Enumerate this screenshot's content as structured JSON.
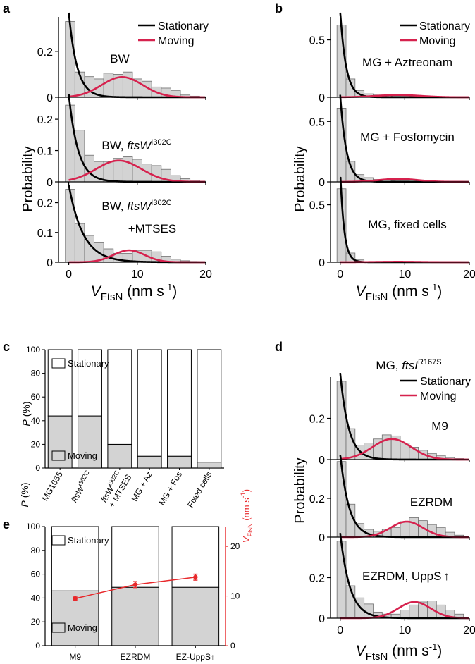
{
  "colors": {
    "stationary": "#000000",
    "moving": "#d6224e",
    "bar": "#d3d3d3",
    "axis_right": "#e8282b"
  },
  "panels": {
    "a": {
      "letter": "a",
      "ylabel": "Probability",
      "xlabel_main": "V",
      "xlabel_sub": "FtsN",
      "xlabel_units": " (nm s",
      "xlabel_exp": "-1",
      "xlabel_close": ")"
    },
    "b": {
      "letter": "b",
      "ylabel": "Probability",
      "xlabel_main": "V",
      "xlabel_sub": "FtsN",
      "xlabel_units": " (nm s",
      "xlabel_exp": "-1",
      "xlabel_close": ")"
    },
    "c": {
      "letter": "c",
      "ylabel": "P",
      "ylabel_units": " (%)"
    },
    "d": {
      "letter": "d",
      "title_prefix": "MG, ",
      "title_gene": "ftsI",
      "title_sup": "R167S",
      "ylabel": "Probability",
      "xlabel_main": "V",
      "xlabel_sub": "FtsN",
      "xlabel_units": " (nm s",
      "xlabel_exp": "-1",
      "xlabel_close": ")"
    },
    "e": {
      "letter": "e",
      "ylabel": "P",
      "ylabel_units": " (%)",
      "ylabel_right_main": "V",
      "ylabel_right_sub": "FtsN",
      "ylabel_right_units": " (nm s",
      "ylabel_right_exp": "-1",
      "ylabel_right_close": ")"
    }
  },
  "labels": {
    "a1": "BW",
    "a2_prefix": "BW, ",
    "a2_gene": "ftsW",
    "a2_sup": "I302C",
    "a3_prefix": "BW, ",
    "a3_gene": "ftsW",
    "a3_sup": "I302C",
    "a3_line2": "+MTSES",
    "b1": "MG + Aztreonam",
    "b2": "MG + Fosfomycin",
    "b3": "MG, fixed cells",
    "d1": "M9",
    "d2": "EZRDM",
    "d3": "EZRDM, UppS",
    "d3_arrow": "↑"
  },
  "chart_data": [
    {
      "id": "a",
      "type": "bar",
      "subtype": "histogram_stack",
      "legend": [
        "Stationary",
        "Moving"
      ],
      "legend_position": "top-right",
      "xlabel": "V FtsN (nm s-1)",
      "xlim": [
        -1.5,
        20
      ],
      "xticks": [
        0,
        10,
        20
      ],
      "bin_width": 1.4,
      "bin_starts": [
        -0.5,
        0.9,
        2.3,
        3.7,
        5.1,
        6.5,
        7.9,
        9.3,
        10.7,
        12.1,
        13.5,
        14.9,
        16.3,
        17.7
      ],
      "subplots": [
        {
          "name": "BW",
          "ylim": [
            0,
            0.35
          ],
          "yticks": [
            0,
            0.2
          ],
          "values": [
            0.33,
            0.11,
            0.09,
            0.08,
            0.105,
            0.1,
            0.11,
            0.08,
            0.07,
            0.045,
            0.04,
            0.03,
            0.01,
            0.005
          ],
          "stationary_curve": {
            "A": 0.37,
            "tau": 1.2
          },
          "moving_curve": {
            "A": 0.088,
            "mu": 7.8,
            "sigma": 3.0
          }
        },
        {
          "name": "BW, ftsW I302C",
          "ylim": [
            0,
            0.27
          ],
          "yticks": [
            0,
            0.1,
            0.2
          ],
          "values": [
            0.245,
            0.165,
            0.085,
            0.065,
            0.065,
            0.075,
            0.08,
            0.072,
            0.057,
            0.052,
            0.04,
            0.02,
            0.01,
            0.005
          ],
          "stationary_curve": {
            "A": 0.28,
            "tau": 1.35
          },
          "moving_curve": {
            "A": 0.068,
            "mu": 7.3,
            "sigma": 3.3
          }
        },
        {
          "name": "BW, ftsW I302C +MTSES",
          "ylim": [
            0,
            0.27
          ],
          "yticks": [
            0,
            0.1,
            0.2
          ],
          "values": [
            0.245,
            0.13,
            0.09,
            0.065,
            0.045,
            0.03,
            0.03,
            0.04,
            0.04,
            0.035,
            0.02,
            0.01,
            0.005,
            0.002
          ],
          "stationary_curve": {
            "A": 0.26,
            "tau": 2.1
          },
          "moving_curve": {
            "A": 0.04,
            "mu": 8.8,
            "sigma": 2.3
          }
        }
      ]
    },
    {
      "id": "b",
      "type": "bar",
      "subtype": "histogram_stack",
      "legend": [
        "Stationary",
        "Moving"
      ],
      "legend_position": "top-right",
      "xlabel": "V FtsN (nm s-1)",
      "xlim": [
        -1.5,
        20
      ],
      "xticks": [
        0,
        10,
        20
      ],
      "bin_width": 1.4,
      "bin_starts": [
        -0.5,
        0.9,
        2.3,
        3.7,
        5.1,
        6.5,
        7.9,
        9.3,
        10.7,
        12.1,
        13.5,
        14.9,
        16.3,
        17.7
      ],
      "subplots": [
        {
          "name": "MG + Aztreonam",
          "ylim": [
            0,
            0.7
          ],
          "yticks": [
            0,
            0.5
          ],
          "values": [
            0.63,
            0.16,
            0.06,
            0.03,
            0.02,
            0.015,
            0.01,
            0.01,
            0.008,
            0.006,
            0.005,
            0.003,
            0.002,
            0.001
          ],
          "stationary_curve": {
            "A": 0.75,
            "tau": 0.9
          },
          "moving_curve": {
            "A": 0.02,
            "mu": 9.0,
            "sigma": 3.5
          }
        },
        {
          "name": "MG + Fosfomycin",
          "ylim": [
            0,
            0.7
          ],
          "yticks": [
            0,
            0.5
          ],
          "values": [
            0.61,
            0.17,
            0.06,
            0.035,
            0.02,
            0.015,
            0.01,
            0.01,
            0.008,
            0.006,
            0.004,
            0.003,
            0.002,
            0.001
          ],
          "stationary_curve": {
            "A": 0.72,
            "tau": 0.95
          },
          "moving_curve": {
            "A": 0.025,
            "mu": 9.0,
            "sigma": 3.0
          }
        },
        {
          "name": "MG, fixed cells",
          "ylim": [
            0,
            0.7
          ],
          "yticks": [
            0,
            0.5
          ],
          "values": [
            0.64,
            0.08,
            0.02,
            0.005,
            0.003,
            0,
            0,
            0,
            0,
            0,
            0,
            0,
            0,
            0
          ],
          "stationary_curve": {
            "A": 0.8,
            "tau": 0.6
          },
          "moving_curve": {
            "A": 0.004,
            "mu": 9.0,
            "sigma": 3.5
          }
        }
      ]
    },
    {
      "id": "c",
      "type": "bar",
      "subtype": "stacked",
      "categories": [
        "MG1655",
        "ftsW I302C",
        "ftsW I302C + MTSES",
        "MG + Az",
        "MG + Fos",
        "Fixed cells"
      ],
      "category_labels": [
        {
          "main": "MG1655"
        },
        {
          "gene": "ftsW",
          "sup": "I302C"
        },
        {
          "gene": "ftsW",
          "sup": "I302C",
          "line2": "+ MTSES"
        },
        {
          "main": "MG + Az"
        },
        {
          "main": "MG + Fos"
        },
        {
          "main": "Fixed cells"
        }
      ],
      "series": [
        {
          "name": "Moving",
          "values": [
            44,
            44,
            20,
            10,
            10,
            5
          ]
        },
        {
          "name": "Stationary",
          "values": [
            56,
            56,
            80,
            90,
            90,
            95
          ]
        }
      ],
      "ylabel": "P (%)",
      "ylim": [
        0,
        100
      ],
      "yticks": [
        0,
        20,
        40,
        60,
        80,
        100
      ]
    },
    {
      "id": "d",
      "type": "bar",
      "subtype": "histogram_stack",
      "legend": [
        "Stationary",
        "Moving"
      ],
      "legend_position": "top-right",
      "xlabel": "V FtsN (nm s-1)",
      "xlim": [
        -1.5,
        20
      ],
      "xticks": [
        0,
        10,
        20
      ],
      "bin_width": 1.4,
      "bin_starts": [
        -0.5,
        0.9,
        2.3,
        3.7,
        5.1,
        6.5,
        7.9,
        9.3,
        10.7,
        12.1,
        13.5,
        14.9,
        16.3,
        17.7
      ],
      "subplots": [
        {
          "name": "M9",
          "ylim": [
            0,
            0.4
          ],
          "yticks": [
            0,
            0.2
          ],
          "values": [
            0.38,
            0.15,
            0.07,
            0.08,
            0.1,
            0.12,
            0.115,
            0.08,
            0.06,
            0.045,
            0.03,
            0.02,
            0.01,
            0.005
          ],
          "stationary_curve": {
            "A": 0.42,
            "tau": 1.3
          },
          "moving_curve": {
            "A": 0.1,
            "mu": 8.0,
            "sigma": 3.0
          }
        },
        {
          "name": "EZRDM",
          "ylim": [
            0,
            0.4
          ],
          "yticks": [
            0,
            0.2
          ],
          "values": [
            0.39,
            0.17,
            0.07,
            0.04,
            0.03,
            0.04,
            0.05,
            0.08,
            0.1,
            0.085,
            0.065,
            0.05,
            0.025,
            0.01
          ],
          "stationary_curve": {
            "A": 0.43,
            "tau": 1.35
          },
          "moving_curve": {
            "A": 0.08,
            "mu": 10.3,
            "sigma": 2.5
          }
        },
        {
          "name": "EZRDM, UppS up",
          "ylim": [
            0,
            0.4
          ],
          "yticks": [
            0,
            0.2
          ],
          "values": [
            0.38,
            0.16,
            0.1,
            0.07,
            0.03,
            0.02,
            0.02,
            0.04,
            0.065,
            0.08,
            0.085,
            0.065,
            0.04,
            0.02
          ],
          "stationary_curve": {
            "A": 0.42,
            "tau": 1.5
          },
          "moving_curve": {
            "A": 0.08,
            "mu": 11.5,
            "sigma": 2.5
          }
        }
      ]
    },
    {
      "id": "e",
      "type": "bar",
      "subtype": "stacked_with_line",
      "categories": [
        "M9",
        "EZRDM",
        "EZ-UppS↑"
      ],
      "series": [
        {
          "name": "Moving",
          "values": [
            46,
            49,
            49
          ]
        },
        {
          "name": "Stationary",
          "values": [
            54,
            51,
            51
          ]
        }
      ],
      "ylabel": "P (%)",
      "ylim": [
        0,
        100
      ],
      "yticks": [
        0,
        20,
        40,
        60,
        80,
        100
      ],
      "line_series": {
        "name": "V FtsN",
        "values": [
          9.5,
          12.3,
          13.8
        ],
        "errors": [
          0.3,
          0.6,
          0.6
        ]
      },
      "ylabel_right": "V FtsN (nm s-1)",
      "ylim_right": [
        0,
        24
      ],
      "yticks_right": [
        0,
        10,
        20
      ]
    }
  ]
}
